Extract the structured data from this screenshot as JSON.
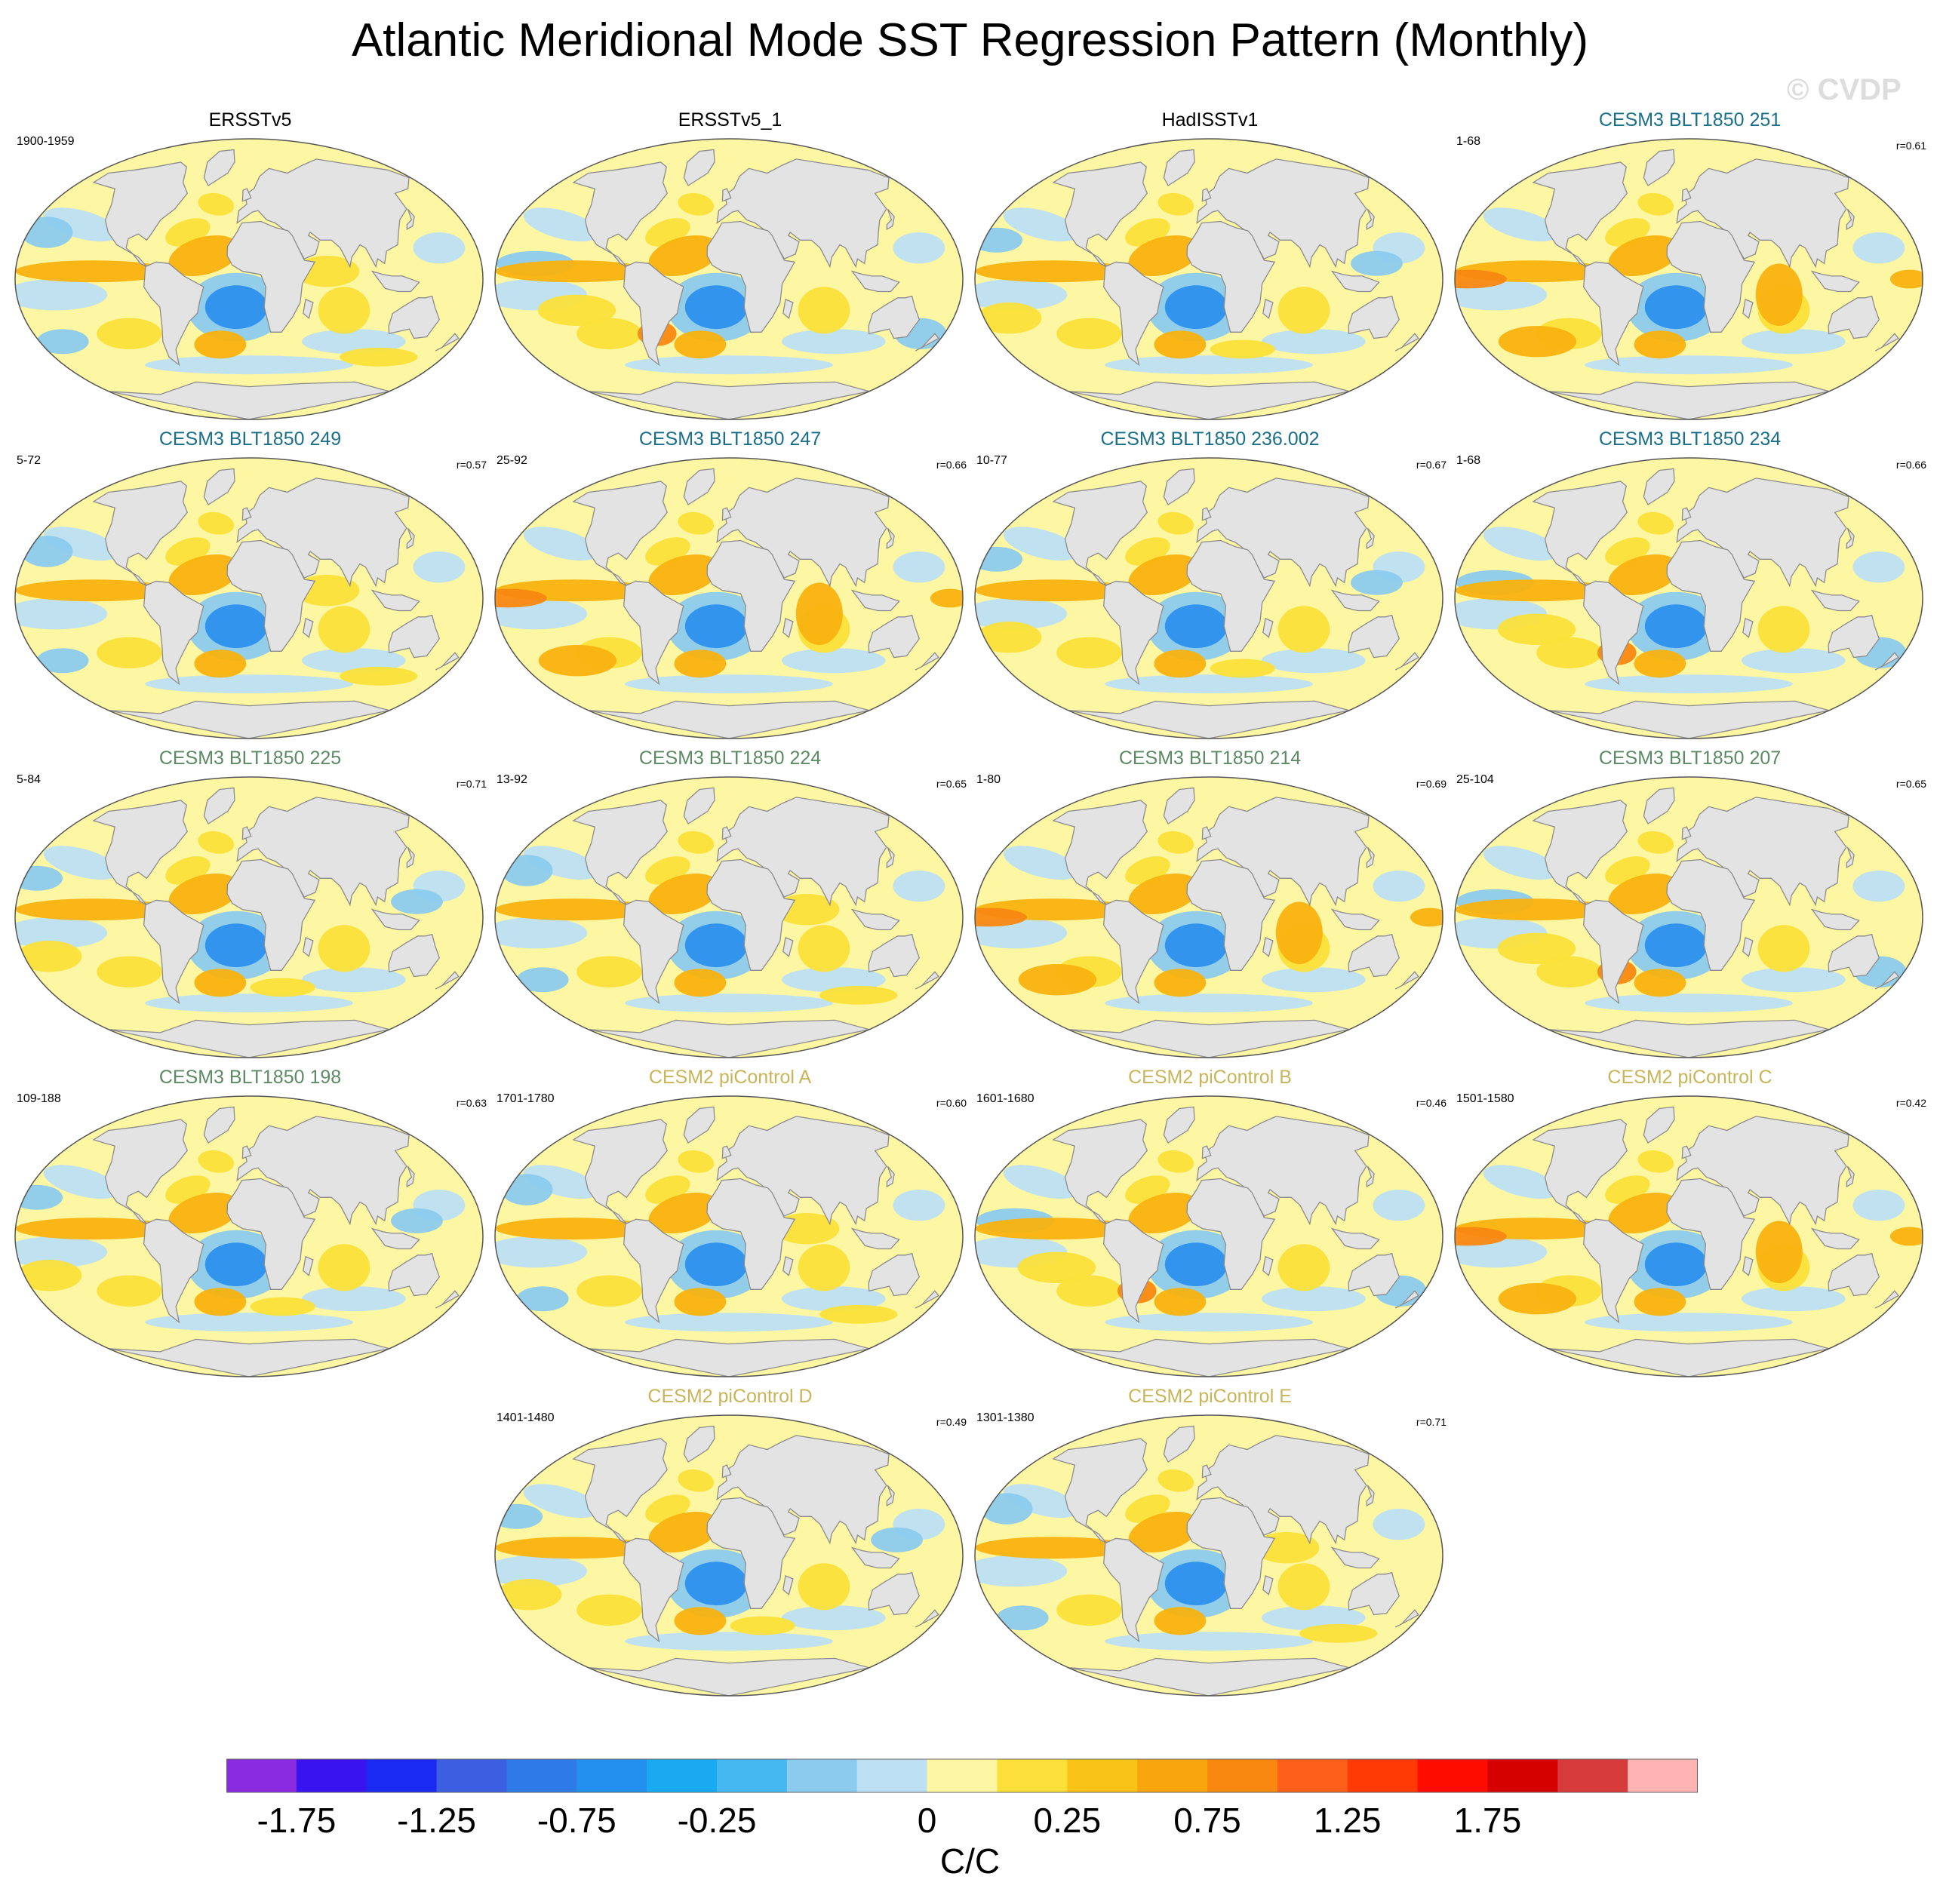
{
  "title": "Atlantic Meridional Mode SST Regression Pattern (Monthly)",
  "watermark": "© CVDP",
  "panels": [
    {
      "title": "ERSSTv5",
      "years": "1900-1959",
      "corr": "",
      "title_color": "#000000",
      "pattern": "a"
    },
    {
      "title": "ERSSTv5_1",
      "years": "",
      "corr": "",
      "title_color": "#000000",
      "pattern": "b"
    },
    {
      "title": "HadISSTv1",
      "years": "",
      "corr": "",
      "title_color": "#000000",
      "pattern": "c"
    },
    {
      "title": "CESM3 BLT1850 251",
      "years": "1-68",
      "corr": "r=0.61",
      "title_color": "#1a6f8a",
      "pattern": "d"
    },
    {
      "title": "CESM3 BLT1850 249",
      "years": "5-72",
      "corr": "r=0.57",
      "title_color": "#1a6f8a",
      "pattern": "a"
    },
    {
      "title": "CESM3 BLT1850 247",
      "years": "25-92",
      "corr": "r=0.66",
      "title_color": "#1a6f8a",
      "pattern": "d"
    },
    {
      "title": "CESM3 BLT1850 236.002",
      "years": "10-77",
      "corr": "r=0.67",
      "title_color": "#1a6f8a",
      "pattern": "c"
    },
    {
      "title": "CESM3 BLT1850 234",
      "years": "1-68",
      "corr": "r=0.66",
      "title_color": "#1a6f8a",
      "pattern": "b"
    },
    {
      "title": "CESM3 BLT1850 225",
      "years": "5-84",
      "corr": "r=0.71",
      "title_color": "#5b8a63",
      "pattern": "c"
    },
    {
      "title": "CESM3 BLT1850 224",
      "years": "13-92",
      "corr": "r=0.65",
      "title_color": "#5b8a63",
      "pattern": "a"
    },
    {
      "title": "CESM3 BLT1850 214",
      "years": "1-80",
      "corr": "r=0.69",
      "title_color": "#5b8a63",
      "pattern": "d"
    },
    {
      "title": "CESM3 BLT1850 207",
      "years": "25-104",
      "corr": "r=0.65",
      "title_color": "#5b8a63",
      "pattern": "b"
    },
    {
      "title": "CESM3 BLT1850 198",
      "years": "109-188",
      "corr": "r=0.63",
      "title_color": "#5b8a63",
      "pattern": "c"
    },
    {
      "title": "CESM2 piControl A",
      "years": "1701-1780",
      "corr": "r=0.60",
      "title_color": "#c9b458",
      "pattern": "a"
    },
    {
      "title": "CESM2 piControl B",
      "years": "1601-1680",
      "corr": "r=0.46",
      "title_color": "#c9b458",
      "pattern": "b"
    },
    {
      "title": "CESM2 piControl C",
      "years": "1501-1580",
      "corr": "r=0.42",
      "title_color": "#c9b458",
      "pattern": "d"
    },
    {
      "title": "CESM2 piControl D",
      "years": "1401-1480",
      "corr": "r=0.49",
      "title_color": "#c9b458",
      "pattern": "c"
    },
    {
      "title": "CESM2 piControl E",
      "years": "1301-1380",
      "corr": "r=0.71",
      "title_color": "#c9b458",
      "pattern": "a"
    }
  ],
  "colorbar": {
    "colors": [
      "#8a2be2",
      "#3a14f0",
      "#1a2af2",
      "#3b5fe0",
      "#2e7ae8",
      "#2390f0",
      "#1aaaf2",
      "#45b8f2",
      "#8ccbee",
      "#bde0f4",
      "#fdf6a2",
      "#fbe03a",
      "#f9c417",
      "#f9a50e",
      "#f98811",
      "#fe5f1a",
      "#ff3a05",
      "#ff0d00",
      "#d50000",
      "#d73a3a",
      "#ffb4b4"
    ],
    "tick_labels": [
      "-1.75",
      "-1.25",
      "-0.75",
      "-0.25",
      "0",
      "0.25",
      "0.75",
      "1.25",
      "1.75"
    ],
    "units": "C/C"
  },
  "map_colors": {
    "land": "#e3e3e3",
    "coast": "#8c8c8c",
    "ocean_base": "#fdf6a2",
    "cool_light": "#bde0f4",
    "cool_mid": "#8ccbee",
    "cool_strong": "#2e90ee",
    "warm_mid": "#fbe03a",
    "warm_strong": "#f9b20f",
    "warm_hot": "#f98811"
  }
}
